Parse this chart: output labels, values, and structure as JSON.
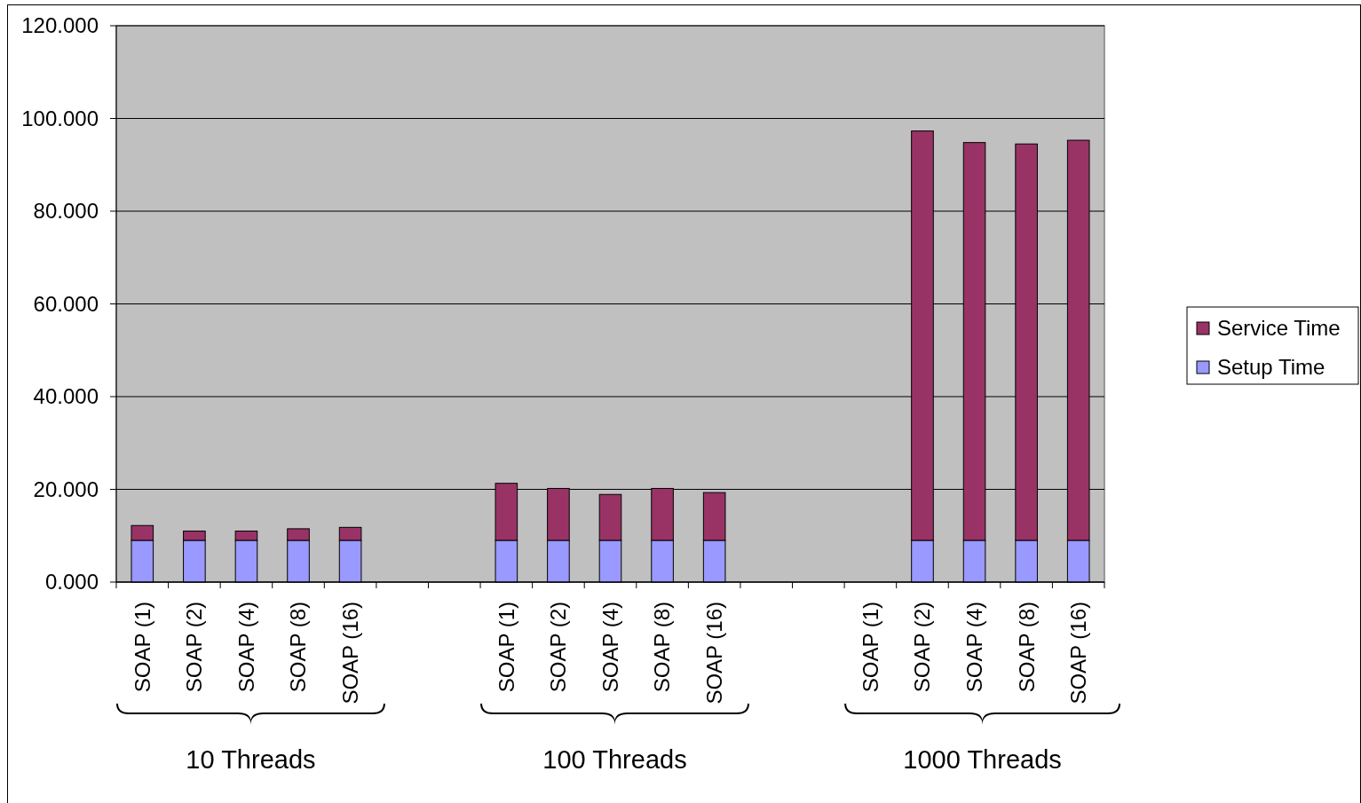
{
  "chart_data": {
    "type": "bar",
    "stacked": true,
    "categories": [
      "SOAP (1)",
      "SOAP (2)",
      "SOAP (4)",
      "SOAP (8)",
      "SOAP (16)",
      null,
      null,
      "SOAP (1)",
      "SOAP (2)",
      "SOAP (4)",
      "SOAP (8)",
      "SOAP (16)",
      null,
      null,
      "SOAP (1)",
      "SOAP (2)",
      "SOAP (4)",
      "SOAP (8)",
      "SOAP (16)"
    ],
    "series": [
      {
        "name": "Setup Time",
        "color": "#9999ff",
        "values": [
          9,
          9,
          9,
          9,
          9,
          null,
          null,
          9,
          9,
          9,
          9,
          9,
          null,
          null,
          null,
          9,
          9,
          9,
          9
        ]
      },
      {
        "name": "Service Time",
        "color": "#993366",
        "values": [
          3.2,
          2,
          2,
          2.5,
          2.8,
          null,
          null,
          12.3,
          11.2,
          9.9,
          11.2,
          10.3,
          null,
          null,
          null,
          88.3,
          85.8,
          85.5,
          86.3
        ]
      }
    ],
    "ylim": [
      0,
      120
    ],
    "yticks": [
      {
        "value": 0,
        "label": "0.000"
      },
      {
        "value": 20,
        "label": "20.000"
      },
      {
        "value": 40,
        "label": "40.000"
      },
      {
        "value": 60,
        "label": "60.000"
      },
      {
        "value": 80,
        "label": "80.000"
      },
      {
        "value": 100,
        "label": "100.000"
      },
      {
        "value": 120,
        "label": "120.000"
      }
    ],
    "grid": "y",
    "legend": "right",
    "annotations": [
      "10 Threads",
      "100 Threads",
      "1000 Threads"
    ]
  }
}
